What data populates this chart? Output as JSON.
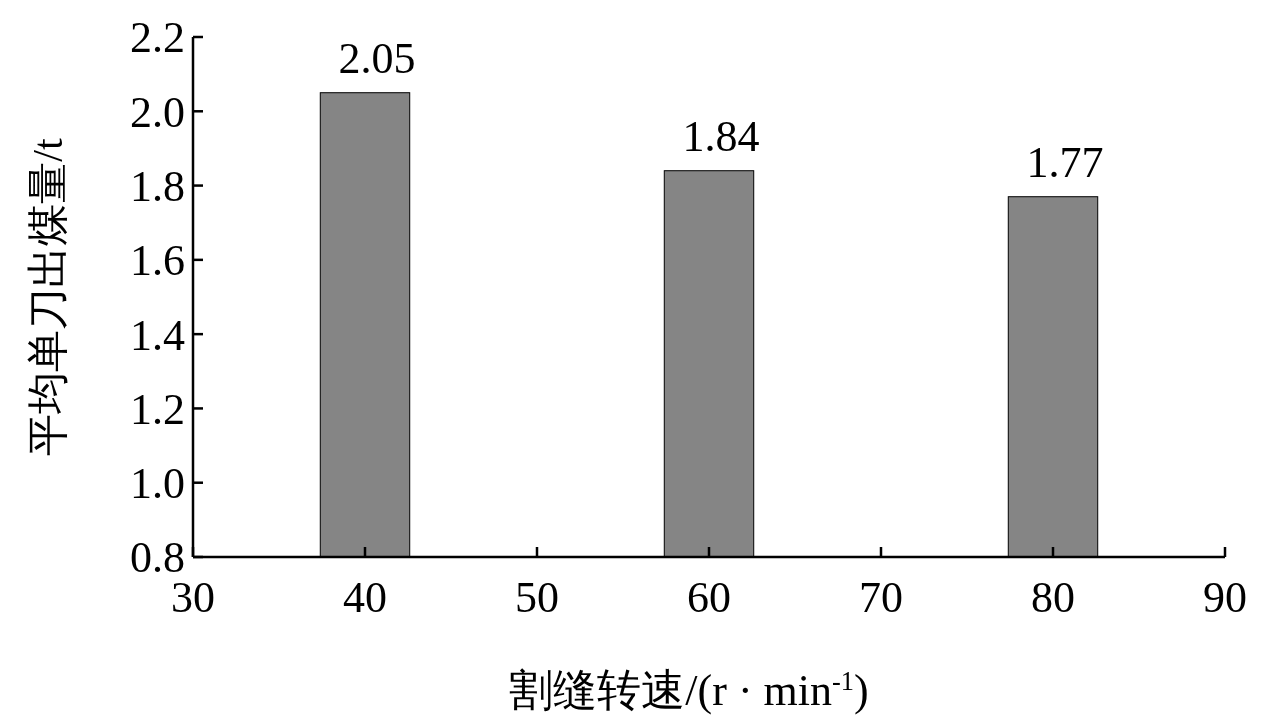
{
  "chart_data": {
    "type": "bar",
    "x": [
      40,
      60,
      80
    ],
    "values": [
      2.05,
      1.84,
      1.77
    ],
    "color": "#858585",
    "data_labels": true,
    "xlabel": "割缝转速/(r · min$^{-1}$)",
    "ylabel": "平均单刀出煤量/t",
    "xlim": [
      30,
      90
    ],
    "xticks": [
      30,
      40,
      50,
      60,
      70,
      80,
      90
    ],
    "ylim": [
      0.8,
      2.2
    ],
    "yticks": [
      0.8,
      {
        "value": 1,
        "label": "1.0"
      },
      1.2,
      1.4,
      1.6,
      1.8,
      {
        "value": 2,
        "label": "2.0"
      },
      2.2
    ],
    "grid": false
  }
}
